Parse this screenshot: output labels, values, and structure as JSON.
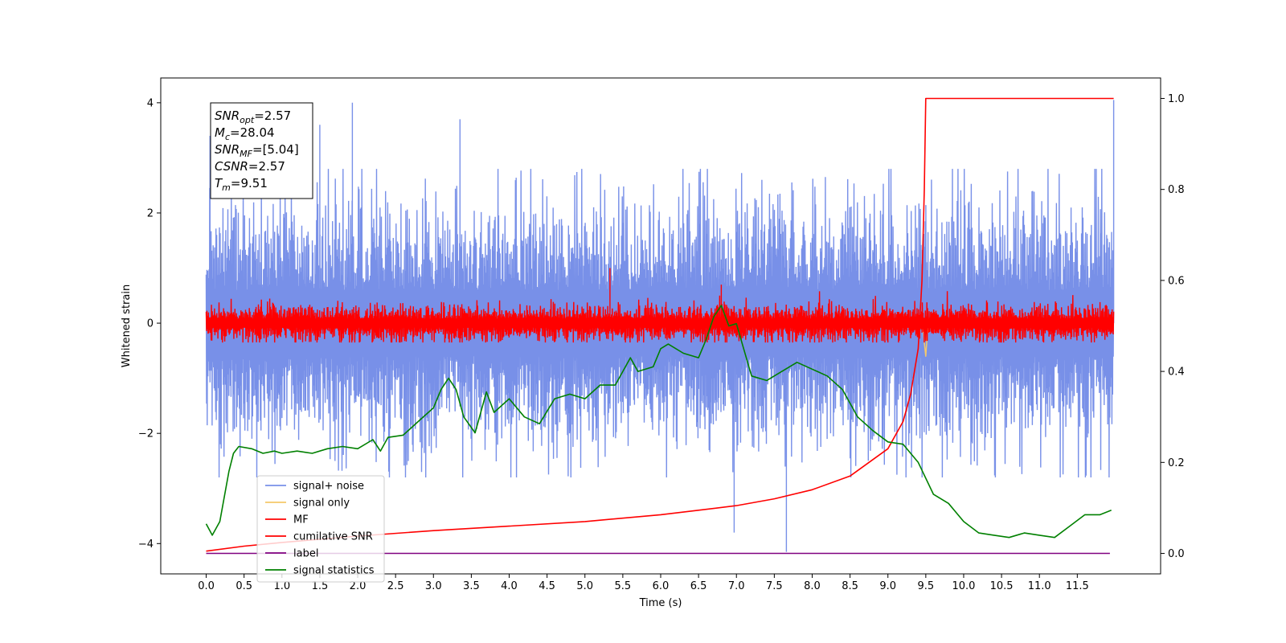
{
  "chart_data": {
    "type": "line",
    "title": "",
    "xlabel": "Time (s)",
    "ylabel": "Whitened strain",
    "xlim": [
      -0.6,
      12.6
    ],
    "ylim": [
      -4.55,
      4.45
    ],
    "y2lim": [
      -0.045,
      1.045
    ],
    "x_ticks": [
      0.0,
      0.5,
      1.0,
      1.5,
      2.0,
      2.5,
      3.0,
      3.5,
      4.0,
      4.5,
      5.0,
      5.5,
      6.0,
      6.5,
      7.0,
      7.5,
      8.0,
      8.5,
      9.0,
      9.5,
      10.0,
      10.5,
      11.0,
      11.5
    ],
    "x_tick_labels": [
      "0.0",
      "0.5",
      "1.0",
      "1.5",
      "2.0",
      "2.5",
      "3.0",
      "3.5",
      "4.0",
      "4.5",
      "5.0",
      "5.5",
      "6.0",
      "6.5",
      "7.0",
      "7.5",
      "8.0",
      "8.5",
      "9.0",
      "9.5",
      "10.0",
      "10.5",
      "11.0",
      "11.5"
    ],
    "y_ticks": [
      -4,
      -2,
      0,
      2,
      4
    ],
    "y_tick_labels": [
      "−4",
      "−2",
      "0",
      "2",
      "4"
    ],
    "y2_ticks": [
      0.0,
      0.2,
      0.4,
      0.6,
      0.8,
      1.0
    ],
    "y2_tick_labels": [
      "0.0",
      "0.2",
      "0.4",
      "0.6",
      "0.8",
      "1.0"
    ],
    "grid": false,
    "legend_position": "lower-left",
    "legend": [
      {
        "label": "signal+ noise",
        "color": "#7890e8"
      },
      {
        "label": "signal only",
        "color": "#f5c86a"
      },
      {
        "label": "MF",
        "color": "#ff0000"
      },
      {
        "label": "cumilative SNR",
        "color": "#ff0000"
      },
      {
        "label": "label",
        "color": "#800080"
      },
      {
        "label": "signal statistics",
        "color": "#008000"
      }
    ],
    "annotation": {
      "snr_opt": {
        "var": "SNR",
        "sub": "opt",
        "value": "=2.57"
      },
      "mc": {
        "var": "M",
        "sub": "c",
        "value": "=28.04"
      },
      "snr_mf": {
        "var": "SNR",
        "sub": "MF",
        "value": "=[5.04]"
      },
      "csnr": {
        "var": "CSNR",
        "sub": "",
        "value": "=2.57"
      },
      "tm": {
        "var": "T",
        "sub": "m",
        "value": "=9.51"
      }
    },
    "series": [
      {
        "name": "signal+ noise",
        "axis": "left",
        "color": "#7890e8",
        "x_range": [
          0.0,
          11.98
        ],
        "baseline_band": [
          -1.0,
          1.0
        ],
        "typical_extremes": [
          -2.6,
          2.6
        ],
        "spikes": [
          [
            1.93,
            4.0
          ],
          [
            11.98,
            4.05
          ],
          [
            6.97,
            -3.8
          ],
          [
            7.66,
            -4.15
          ],
          [
            0.05,
            3.4
          ],
          [
            1.5,
            3.6
          ],
          [
            3.35,
            3.7
          ]
        ]
      },
      {
        "name": "signal only",
        "axis": "left",
        "color": "#f5c86a",
        "points": [
          [
            9.46,
            0.0
          ],
          [
            9.48,
            -0.35
          ],
          [
            9.5,
            -0.6
          ],
          [
            9.52,
            -0.2
          ],
          [
            9.54,
            0.0
          ]
        ]
      },
      {
        "name": "MF",
        "axis": "left",
        "color": "#ff0000",
        "x_range": [
          0.0,
          11.98
        ],
        "baseline_band": [
          -0.25,
          0.25
        ],
        "spikes": [
          [
            5.33,
            1.0
          ],
          [
            6.8,
            0.7
          ]
        ]
      },
      {
        "name": "cumilative SNR",
        "axis": "right",
        "color": "#ff0000",
        "points": [
          [
            0.0,
            0.005
          ],
          [
            0.5,
            0.016
          ],
          [
            1.0,
            0.024
          ],
          [
            2.0,
            0.038
          ],
          [
            3.0,
            0.05
          ],
          [
            4.0,
            0.06
          ],
          [
            5.0,
            0.07
          ],
          [
            6.0,
            0.085
          ],
          [
            6.5,
            0.095
          ],
          [
            7.0,
            0.105
          ],
          [
            7.5,
            0.12
          ],
          [
            8.0,
            0.14
          ],
          [
            8.5,
            0.17
          ],
          [
            9.0,
            0.23
          ],
          [
            9.2,
            0.29
          ],
          [
            9.3,
            0.35
          ],
          [
            9.4,
            0.45
          ],
          [
            9.45,
            0.6
          ],
          [
            9.48,
            0.8
          ],
          [
            9.5,
            1.0
          ],
          [
            11.98,
            1.0
          ]
        ]
      },
      {
        "name": "label",
        "axis": "right",
        "color": "#800080",
        "points": [
          [
            0.0,
            0.0
          ],
          [
            11.93,
            0.0
          ]
        ]
      },
      {
        "name": "signal statistics",
        "axis": "right",
        "color": "#008000",
        "points": [
          [
            0.0,
            0.065
          ],
          [
            0.08,
            0.04
          ],
          [
            0.18,
            0.07
          ],
          [
            0.3,
            0.18
          ],
          [
            0.36,
            0.22
          ],
          [
            0.43,
            0.235
          ],
          [
            0.6,
            0.23
          ],
          [
            0.75,
            0.22
          ],
          [
            0.9,
            0.225
          ],
          [
            1.0,
            0.22
          ],
          [
            1.2,
            0.225
          ],
          [
            1.4,
            0.22
          ],
          [
            1.6,
            0.23
          ],
          [
            1.8,
            0.235
          ],
          [
            2.0,
            0.23
          ],
          [
            2.2,
            0.25
          ],
          [
            2.3,
            0.225
          ],
          [
            2.4,
            0.255
          ],
          [
            2.6,
            0.26
          ],
          [
            2.8,
            0.29
          ],
          [
            3.0,
            0.32
          ],
          [
            3.1,
            0.36
          ],
          [
            3.2,
            0.385
          ],
          [
            3.3,
            0.36
          ],
          [
            3.4,
            0.3
          ],
          [
            3.55,
            0.265
          ],
          [
            3.7,
            0.355
          ],
          [
            3.8,
            0.31
          ],
          [
            4.0,
            0.34
          ],
          [
            4.2,
            0.3
          ],
          [
            4.4,
            0.285
          ],
          [
            4.6,
            0.34
          ],
          [
            4.8,
            0.35
          ],
          [
            5.0,
            0.34
          ],
          [
            5.2,
            0.37
          ],
          [
            5.4,
            0.37
          ],
          [
            5.6,
            0.43
          ],
          [
            5.7,
            0.4
          ],
          [
            5.9,
            0.41
          ],
          [
            6.0,
            0.45
          ],
          [
            6.1,
            0.46
          ],
          [
            6.3,
            0.44
          ],
          [
            6.5,
            0.43
          ],
          [
            6.6,
            0.47
          ],
          [
            6.7,
            0.52
          ],
          [
            6.8,
            0.545
          ],
          [
            6.9,
            0.5
          ],
          [
            7.0,
            0.505
          ],
          [
            7.2,
            0.39
          ],
          [
            7.4,
            0.38
          ],
          [
            7.6,
            0.4
          ],
          [
            7.8,
            0.42
          ],
          [
            8.0,
            0.405
          ],
          [
            8.2,
            0.39
          ],
          [
            8.4,
            0.36
          ],
          [
            8.6,
            0.3
          ],
          [
            8.8,
            0.27
          ],
          [
            9.0,
            0.245
          ],
          [
            9.2,
            0.24
          ],
          [
            9.4,
            0.2
          ],
          [
            9.6,
            0.13
          ],
          [
            9.8,
            0.11
          ],
          [
            10.0,
            0.07
          ],
          [
            10.2,
            0.045
          ],
          [
            10.4,
            0.04
          ],
          [
            10.6,
            0.035
          ],
          [
            10.8,
            0.045
          ],
          [
            11.0,
            0.04
          ],
          [
            11.2,
            0.035
          ],
          [
            11.4,
            0.06
          ],
          [
            11.6,
            0.085
          ],
          [
            11.8,
            0.085
          ],
          [
            11.95,
            0.095
          ]
        ]
      }
    ]
  }
}
